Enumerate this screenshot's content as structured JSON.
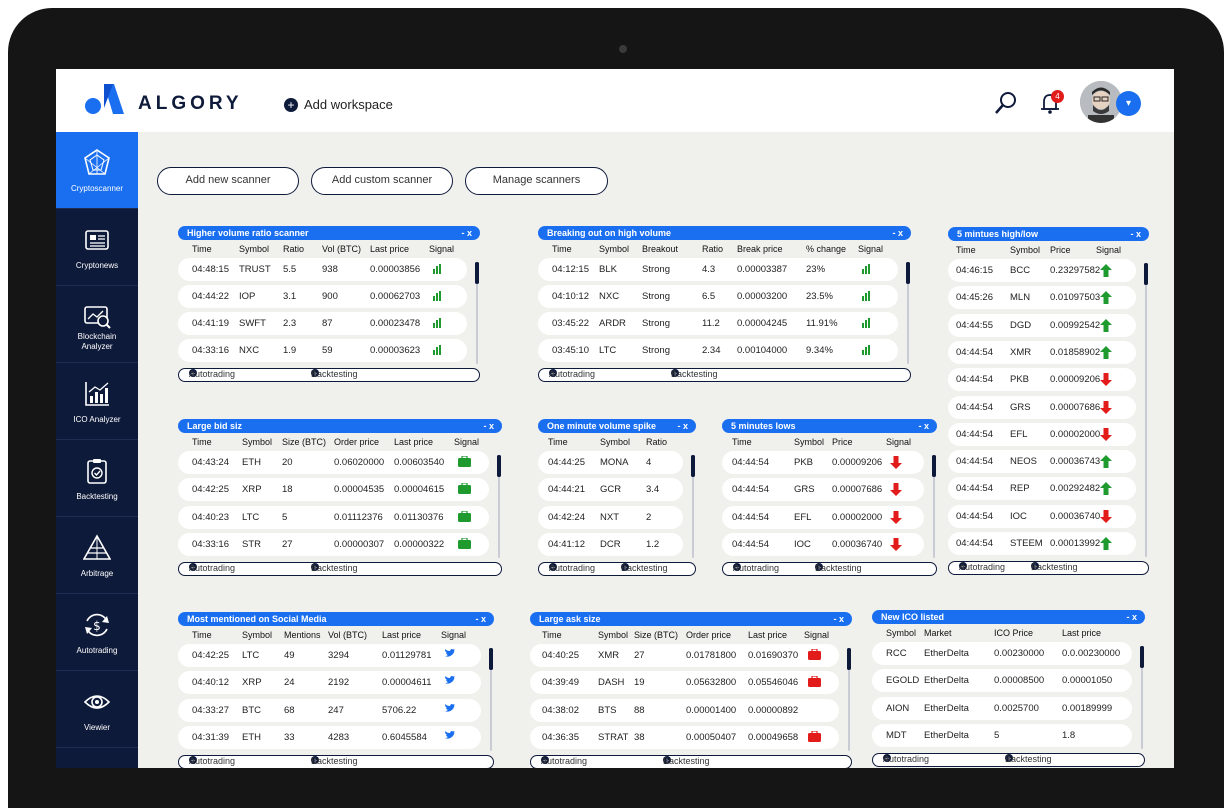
{
  "app": {
    "brand": "ALGORY",
    "add_workspace": "Add workspace",
    "notifications": "4"
  },
  "sidebar": {
    "items": [
      {
        "label": "Cryptoscanner",
        "icon": "compass-icon"
      },
      {
        "label": "Cryptonews",
        "icon": "newspaper-icon"
      },
      {
        "label": "Blockchain\nAnalyzer",
        "icon": "analyzer-icon"
      },
      {
        "label": "ICO Analyzer",
        "icon": "chart-icon"
      },
      {
        "label": "Backtesting",
        "icon": "clipboard-icon"
      },
      {
        "label": "Arbitrage",
        "icon": "pyramid-icon"
      },
      {
        "label": "Autotrading",
        "icon": "dollar-cycle-icon"
      },
      {
        "label": "Viewier",
        "icon": "eye-icon"
      }
    ]
  },
  "toolbar": {
    "add_new": "Add new scanner",
    "add_custom": "Add custom scanner",
    "manage": "Manage  scanners"
  },
  "footer": {
    "autotrading": "Autotrading",
    "backtesting": "Backtesting"
  },
  "widgets": [
    {
      "title": "Higher volume ratio scanner",
      "close": "- x",
      "columns": [
        "Time",
        "Symbol",
        "Ratio",
        "Vol (BTC)",
        "Last price",
        "Signal"
      ],
      "rows": [
        [
          "04:48:15",
          "TRUST",
          "5.5",
          "938",
          "0.00003856",
          "bars"
        ],
        [
          "04:44:22",
          "IOP",
          "3.1",
          "900",
          "0.00062703",
          "bars"
        ],
        [
          "04:41:19",
          "SWFT",
          "2.3",
          "87",
          "0.00023478",
          "bars"
        ],
        [
          "04:33:16",
          "NXC",
          "1.9",
          "59",
          "0.00003623",
          "bars"
        ]
      ]
    },
    {
      "title": "Breaking out on high volume",
      "close": "- x",
      "columns": [
        "Time",
        "Symbol",
        "Breakout",
        "Ratio",
        "Break price",
        "% change",
        "Signal"
      ],
      "rows": [
        [
          "04:12:15",
          "BLK",
          "Strong",
          "4.3",
          "0.00003387",
          "23%",
          "bars"
        ],
        [
          "04:10:12",
          "NXC",
          "Strong",
          "6.5",
          "0.00003200",
          "23.5%",
          "bars"
        ],
        [
          "03:45:22",
          "ARDR",
          "Strong",
          "11.2",
          "0.00004245",
          "11.91%",
          "bars"
        ],
        [
          "03:45:10",
          "LTC",
          "Strong",
          "2.34",
          "0.00104000",
          "9.34%",
          "bars"
        ]
      ]
    },
    {
      "title": "5 mintues high/low",
      "close": "- x",
      "columns": [
        "Time",
        "Symbol",
        "Price",
        "Signal"
      ],
      "rows": [
        [
          "04:46:15",
          "BCC",
          "0.23297582",
          "up"
        ],
        [
          "04:45:26",
          "MLN",
          "0.01097503",
          "up"
        ],
        [
          "04:44:55",
          "DGD",
          "0.00992542",
          "up"
        ],
        [
          "04:44:54",
          "XMR",
          "0.01858902",
          "up"
        ],
        [
          "04:44:54",
          "PKB",
          "0.00009206",
          "down"
        ],
        [
          "04:44:54",
          "GRS",
          "0.00007686",
          "down"
        ],
        [
          "04:44:54",
          "EFL",
          "0.00002000",
          "down"
        ],
        [
          "04:44:54",
          "NEOS",
          "0.00036743",
          "up"
        ],
        [
          "04:44:54",
          "REP",
          "0.00292482",
          "up"
        ],
        [
          "04:44:54",
          "IOC",
          "0.00036740",
          "down"
        ],
        [
          "04:44:54",
          "STEEM",
          "0.00013992",
          "up"
        ]
      ]
    },
    {
      "title": "Large bid siz",
      "close": "- x",
      "columns": [
        "Time",
        "Symbol",
        "Size (BTC)",
        "Order price",
        "Last price",
        "Signal"
      ],
      "rows": [
        [
          "04:43:24",
          "ETH",
          "20",
          "0.06020000",
          "0.00603540",
          "bag-green"
        ],
        [
          "04:42:25",
          "XRP",
          "18",
          "0.00004535",
          "0.00004615",
          "bag-green"
        ],
        [
          "04:40:23",
          "LTC",
          "5",
          "0.01112376",
          "0.01130376",
          "bag-green"
        ],
        [
          "04:33:16",
          "STR",
          "27",
          "0.00000307",
          "0.00000322",
          "bag-green"
        ]
      ]
    },
    {
      "title": "One minute volume spike",
      "close": "- x",
      "columns": [
        "Time",
        "Symbol",
        "Ratio"
      ],
      "rows": [
        [
          "04:44:25",
          "MONA",
          "4"
        ],
        [
          "04:44:21",
          "GCR",
          "3.4"
        ],
        [
          "04:42:24",
          "NXT",
          "2"
        ],
        [
          "04:41:12",
          "DCR",
          "1.2"
        ]
      ]
    },
    {
      "title": "5 minutes lows",
      "close": "- x",
      "columns": [
        "Time",
        "Symbol",
        "Price",
        "Signal"
      ],
      "rows": [
        [
          "04:44:54",
          "PKB",
          "0.00009206",
          "down"
        ],
        [
          "04:44:54",
          "GRS",
          "0.00007686",
          "down"
        ],
        [
          "04:44:54",
          "EFL",
          "0.00002000",
          "down"
        ],
        [
          "04:44:54",
          "IOC",
          "0.00036740",
          "down"
        ]
      ]
    },
    {
      "title": "Most mentioned on Social Media",
      "close": "- x",
      "columns": [
        "Time",
        "Symbol",
        "Mentions",
        "Vol (BTC)",
        "Last price",
        "Signal"
      ],
      "rows": [
        [
          "04:42:25",
          "LTC",
          "49",
          "3294",
          "0.01129781",
          "bird"
        ],
        [
          "04:40:12",
          "XRP",
          "24",
          "2192",
          "0.00004611",
          "bird"
        ],
        [
          "04:33:27",
          "BTC",
          "68",
          "247",
          "5706.22",
          "bird"
        ],
        [
          "04:31:39",
          "ETH",
          "33",
          "4283",
          "0.6045584",
          "bird"
        ]
      ]
    },
    {
      "title": "Large ask size",
      "close": "- x",
      "columns": [
        "Time",
        "Symbol",
        "Size (BTC)",
        "Order price",
        "Last price",
        "Signal"
      ],
      "rows": [
        [
          "04:40:25",
          "XMR",
          "27",
          "0.01781800",
          "0.01690370",
          "bag-red"
        ],
        [
          "04:39:49",
          "DASH",
          "19",
          "0.05632800",
          "0.05546046",
          "bag-red"
        ],
        [
          "04:38:02",
          "BTS",
          "88",
          "0.00001400",
          "0.00000892",
          ""
        ],
        [
          "04:36:35",
          "STRAT",
          "38",
          "0.00050407",
          "0.00049658",
          "bag-red"
        ]
      ]
    },
    {
      "title": "New ICO listed",
      "close": "- x",
      "columns": [
        "Symbol",
        "Market",
        "ICO Price",
        "Last price"
      ],
      "rows": [
        [
          "RCC",
          "EtherDelta",
          "0.00230000",
          "0.0.00230000"
        ],
        [
          "EGOLD",
          "EtherDelta",
          "0.00008500",
          "0.00001050"
        ],
        [
          "AION",
          "EtherDelta",
          "0.0025700",
          "0.00189999"
        ],
        [
          "MDT",
          "EtherDelta",
          "5",
          "1.8"
        ]
      ]
    }
  ],
  "colors": {
    "primary": "#1a6ff0",
    "navy": "#0e1a3a",
    "up": "#1f9a2e",
    "down": "#e21b1b"
  }
}
